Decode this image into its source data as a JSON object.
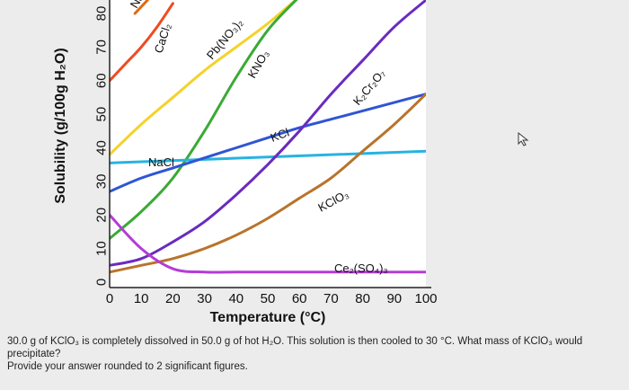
{
  "chart_data": {
    "type": "line",
    "xlabel": "Temperature (°C)",
    "ylabel": "Solubility (g/100g H₂O)",
    "xlim": [
      0,
      100
    ],
    "ylim": [
      0,
      80
    ],
    "x_ticks": [
      "0",
      "10",
      "20",
      "30",
      "40",
      "50",
      "60",
      "70",
      "80",
      "90",
      "100"
    ],
    "y_ticks": [
      "0",
      "10",
      "20",
      "30",
      "40",
      "50",
      "60",
      "70",
      "80"
    ],
    "series": [
      {
        "name": "CaCl₂",
        "color": "#f04a22",
        "x": [
          0,
          5,
          10,
          15,
          20
        ],
        "y": [
          60,
          65,
          70,
          76,
          83
        ]
      },
      {
        "name": "Pb(NO₃)₂",
        "color": "#f4d22a",
        "x": [
          0,
          10,
          20,
          30,
          40,
          50,
          60
        ],
        "y": [
          38,
          47,
          55,
          63,
          70,
          77,
          85
        ]
      },
      {
        "name": "KNO₃",
        "color": "#3aaa35",
        "x": [
          0,
          10,
          20,
          30,
          40,
          50,
          60
        ],
        "y": [
          13,
          21,
          31,
          45,
          61,
          75,
          85
        ]
      },
      {
        "name": "NaCl",
        "color": "#27b3e0",
        "x": [
          0,
          100
        ],
        "y": [
          35.5,
          39
        ]
      },
      {
        "name": "KCl",
        "color": "#2f55d4",
        "x": [
          0,
          10,
          20,
          30,
          40,
          50,
          60,
          70,
          80,
          90,
          100
        ],
        "y": [
          27,
          31,
          34,
          37,
          40,
          43,
          46,
          48.5,
          51,
          53.5,
          56
        ]
      },
      {
        "name": "K₂Cr₂O₇",
        "color": "#6a2bbf",
        "x": [
          0,
          10,
          20,
          30,
          40,
          50,
          60,
          70,
          80,
          90,
          100
        ],
        "y": [
          5,
          7,
          12,
          18,
          26,
          35,
          45,
          56,
          66,
          76,
          84
        ]
      },
      {
        "name": "KClO₃",
        "color": "#b8742a",
        "x": [
          0,
          10,
          20,
          30,
          40,
          50,
          60,
          70,
          80,
          90,
          100
        ],
        "y": [
          3,
          5,
          7,
          10,
          14,
          19,
          25,
          31,
          39,
          47,
          56
        ]
      },
      {
        "name": "Ce₂(SO₄)₃",
        "color": "#b43cd6",
        "x": [
          0,
          10,
          20,
          30,
          40,
          50,
          60,
          70,
          80,
          90,
          100
        ],
        "y": [
          20,
          10,
          4,
          3,
          3,
          3,
          3,
          3,
          3,
          3,
          3
        ]
      },
      {
        "name": "Na",
        "color": "#e06a10",
        "x": [
          8,
          12
        ],
        "y": [
          80,
          84
        ]
      }
    ]
  },
  "question": {
    "line1": "30.0 g of KClO₃ is completely dissolved in 50.0 g of hot H₂O. This solution is then cooled to 30 °C. What mass of KClO₃ would precipitate?",
    "line2": "Provide your answer rounded to 2 significant figures."
  }
}
